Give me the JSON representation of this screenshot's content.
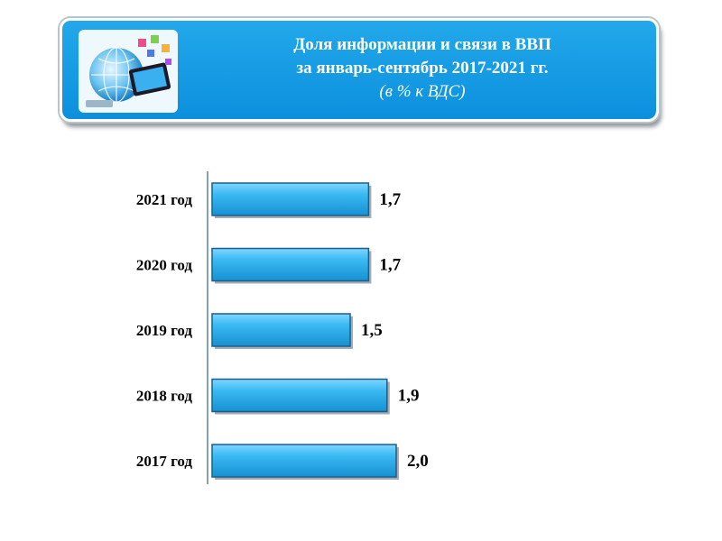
{
  "header": {
    "title_line1": "Доля информации и связи в ВВП",
    "title_line2": "за январь-сентябрь 2017-2021 гг.",
    "subtitle": "(в % к ВДС)",
    "image_icon": "technology-globe-tablet-icon"
  },
  "colors": {
    "banner": "#1199e2",
    "bar_fill": "#33b3ee",
    "bar_edge": "#1a5f8a",
    "axis": "#5a7ea8"
  },
  "chart_data": {
    "type": "bar",
    "orientation": "horizontal",
    "categories": [
      "2021 год",
      "2020 год",
      "2019 год",
      "2018 год",
      "2017 год"
    ],
    "values": [
      1.7,
      1.7,
      1.5,
      1.9,
      2.0
    ],
    "value_labels": [
      "1,7",
      "1,7",
      "1,5",
      "1,9",
      "2,0"
    ],
    "title": "Доля информации и связи в ВВП за январь-сентябрь 2017-2021 гг.",
    "subtitle": "(в % к ВДС)",
    "xlabel": "",
    "ylabel": "",
    "grid": false,
    "legend": "none"
  }
}
